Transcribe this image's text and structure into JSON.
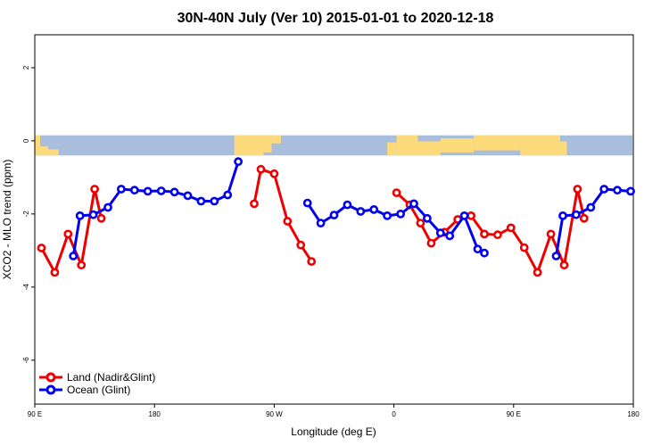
{
  "chart_data": {
    "type": "line",
    "title": "30N-40N July (Ver 10)   2015-01-01 to 2020-12-18",
    "xlabel": "Longitude (deg E)",
    "ylabel": "XCO2 - MLO trend (ppm)",
    "xlim": [
      90,
      540
    ],
    "ylim": [
      -7.2,
      2.9
    ],
    "xticks": [
      {
        "value": 90,
        "label": "90 E"
      },
      {
        "value": 180,
        "label": "180"
      },
      {
        "value": 270,
        "label": "90 W"
      },
      {
        "value": 360,
        "label": "0"
      },
      {
        "value": 450,
        "label": "90 E"
      },
      {
        "value": 540,
        "label": "180"
      }
    ],
    "yticks": [
      {
        "value": 2,
        "label": "2"
      },
      {
        "value": 0,
        "label": "0"
      },
      {
        "value": -2,
        "label": "-2"
      },
      {
        "value": -4,
        "label": "-4"
      },
      {
        "value": -6,
        "label": "-6"
      }
    ],
    "legend": {
      "position": "bottom-left",
      "entries": [
        "Land (Nadir&Glint)",
        "Ocean (Glint)"
      ]
    },
    "map_band": {
      "y_range": [
        -0.4,
        0.15
      ],
      "land_color": "#fedb7a",
      "ocean_color": "#a9bedd"
    },
    "series": [
      {
        "name": "Land (Nadir&Glint)",
        "color": "#ee0000",
        "segments": [
          [
            [
              95,
              -2.93
            ],
            [
              105,
              -3.6
            ],
            [
              115,
              -2.55
            ],
            [
              125,
              -3.4
            ],
            [
              135,
              -1.32
            ],
            [
              140,
              -2.12
            ]
          ],
          [
            [
              255,
              -1.72
            ],
            [
              260,
              -0.78
            ],
            [
              270,
              -0.9
            ],
            [
              280,
              -2.2
            ],
            [
              290,
              -2.85
            ],
            [
              298,
              -3.3
            ]
          ],
          [
            [
              362,
              -1.42
            ],
            [
              372,
              -1.75
            ],
            [
              380,
              -2.25
            ],
            [
              388,
              -2.8
            ],
            [
              398,
              -2.5
            ],
            [
              408,
              -2.15
            ],
            [
              418,
              -2.05
            ],
            [
              428,
              -2.55
            ],
            [
              438,
              -2.57
            ],
            [
              448,
              -2.38
            ],
            [
              458,
              -2.92
            ],
            [
              468,
              -3.6
            ],
            [
              478,
              -2.55
            ],
            [
              488,
              -3.4
            ],
            [
              498,
              -1.32
            ],
            [
              503,
              -2.12
            ]
          ]
        ]
      },
      {
        "name": "Ocean (Glint)",
        "color": "#0000ee",
        "segments": [
          [
            [
              119,
              -3.15
            ],
            [
              124,
              -2.05
            ],
            [
              134,
              -2.02
            ],
            [
              145,
              -1.82
            ],
            [
              155,
              -1.32
            ],
            [
              165,
              -1.35
            ],
            [
              175,
              -1.38
            ],
            [
              185,
              -1.37
            ],
            [
              195,
              -1.4
            ],
            [
              205,
              -1.5
            ],
            [
              215,
              -1.65
            ],
            [
              225,
              -1.65
            ],
            [
              235,
              -1.48
            ],
            [
              243,
              -0.57
            ]
          ],
          [
            [
              295,
              -1.7
            ],
            [
              305,
              -2.25
            ],
            [
              315,
              -2.03
            ],
            [
              325,
              -1.75
            ],
            [
              335,
              -1.93
            ],
            [
              345,
              -1.88
            ],
            [
              355,
              -2.05
            ],
            [
              365,
              -2.0
            ],
            [
              375,
              -1.72
            ],
            [
              385,
              -2.12
            ],
            [
              395,
              -2.52
            ],
            [
              402,
              -2.6
            ],
            [
              413,
              -2.05
            ],
            [
              423,
              -2.96
            ],
            [
              428,
              -3.07
            ]
          ],
          [
            [
              482,
              -3.15
            ],
            [
              487,
              -2.05
            ],
            [
              497,
              -2.02
            ],
            [
              508,
              -1.82
            ],
            [
              518,
              -1.32
            ],
            [
              528,
              -1.35
            ],
            [
              538,
              -1.38
            ]
          ]
        ]
      }
    ]
  }
}
